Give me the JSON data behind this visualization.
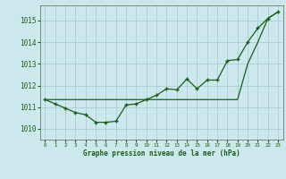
{
  "title": "Graphe pression niveau de la mer (hPa)",
  "background_color": "#cce8ec",
  "grid_color": "#aacdd4",
  "line_color": "#1a5c1a",
  "x_labels": [
    "0",
    "1",
    "2",
    "3",
    "4",
    "5",
    "6",
    "7",
    "8",
    "9",
    "10",
    "11",
    "12",
    "13",
    "14",
    "15",
    "16",
    "17",
    "18",
    "19",
    "20",
    "21",
    "22",
    "23"
  ],
  "ylim": [
    1009.5,
    1015.7
  ],
  "yticks": [
    1010,
    1011,
    1012,
    1013,
    1014,
    1015
  ],
  "data_line": [
    1011.35,
    1011.15,
    1010.95,
    1010.75,
    1010.65,
    1010.3,
    1010.3,
    1010.35,
    1011.1,
    1011.15,
    1011.35,
    1011.55,
    1011.85,
    1011.8,
    1012.3,
    1011.85,
    1012.25,
    1012.25,
    1013.15,
    1013.2,
    1014.0,
    1014.65,
    1015.1,
    1015.4
  ],
  "trend_line": [
    1011.35,
    1011.35,
    1011.35,
    1011.35,
    1011.35,
    1011.35,
    1011.35,
    1011.35,
    1011.35,
    1011.35,
    1011.35,
    1011.35,
    1011.35,
    1011.35,
    1011.35,
    1011.35,
    1011.35,
    1011.35,
    1011.35,
    1011.35,
    1013.0,
    1014.0,
    1015.1,
    1015.4
  ]
}
